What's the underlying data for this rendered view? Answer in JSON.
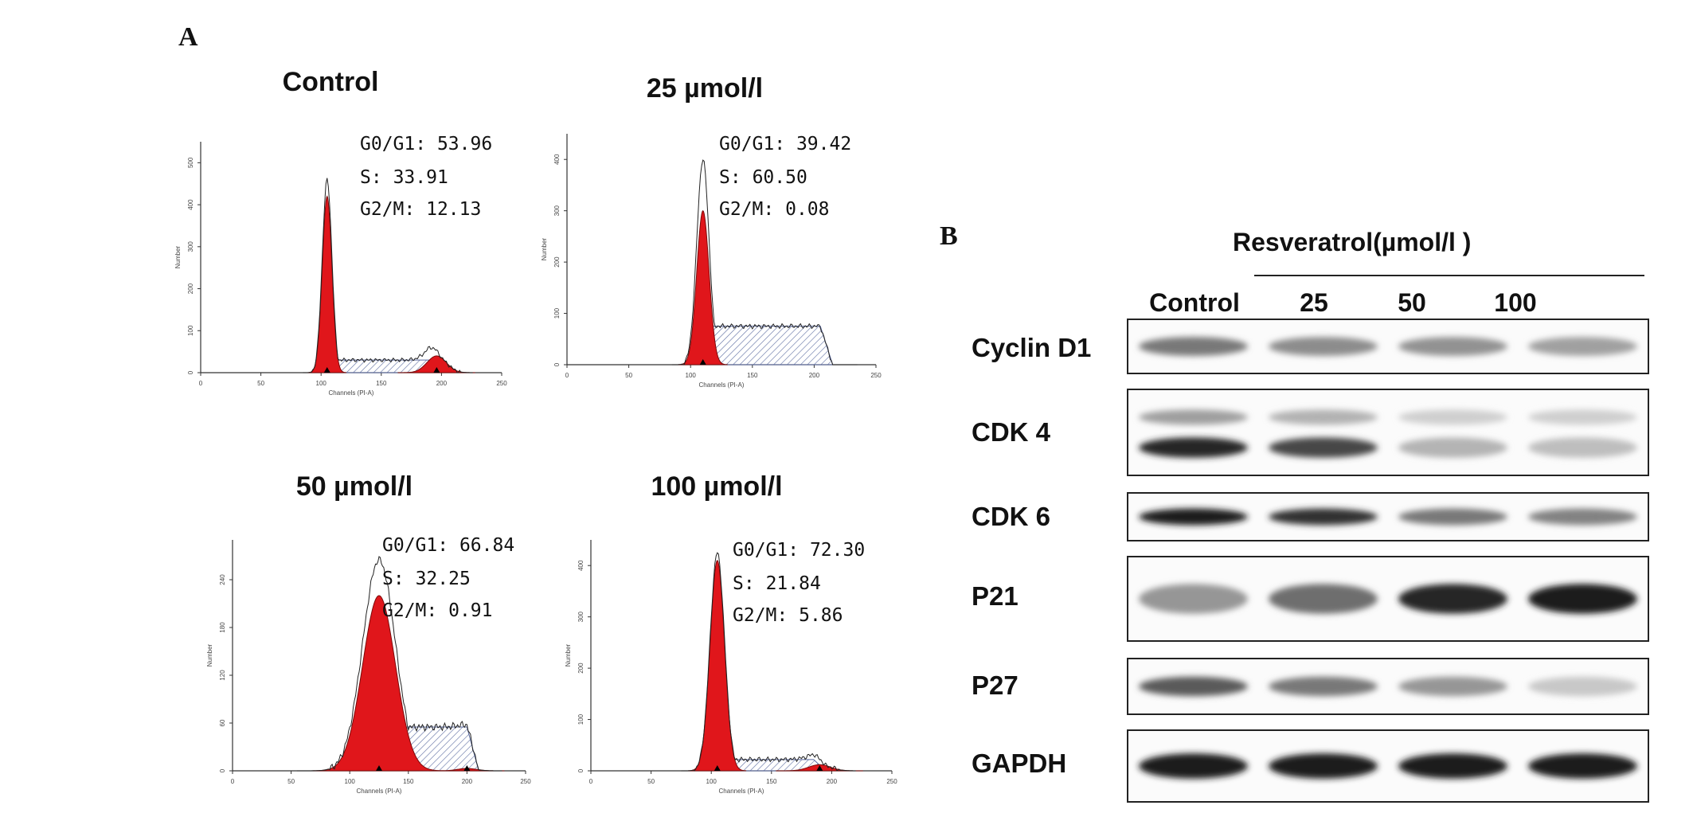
{
  "panel_a": {
    "label": "A",
    "histograms": [
      {
        "title": "Control",
        "stats": [
          {
            "phase": "G0/G1",
            "value": "53.96"
          },
          {
            "phase": "S",
            "value": "33.91"
          },
          {
            "phase": "G2/M",
            "value": "12.13"
          }
        ],
        "xlabel": "Channels (PI-A)",
        "ylabel": "Number",
        "xticks": [
          "0",
          "50",
          "100",
          "150",
          "200",
          "250"
        ],
        "yticks": [
          "0",
          "100",
          "200",
          "300",
          "400",
          "500"
        ],
        "ymax": 550,
        "g1_peak": {
          "center": 105,
          "width": 4,
          "height": 420
        },
        "g2_peak": {
          "center": 196,
          "width": 8,
          "height": 40
        },
        "s_level": 30,
        "s_range": [
          112,
          190
        ],
        "envelope_peak_height": 460
      },
      {
        "title": "25 µmol/l",
        "stats": [
          {
            "phase": "G0/G1",
            "value": "39.42"
          },
          {
            "phase": "S",
            "value": "60.50"
          },
          {
            "phase": "G2/M",
            "value": "0.08"
          }
        ],
        "xlabel": "Channels (PI-A)",
        "ylabel": "Number",
        "xticks": [
          "0",
          "50",
          "100",
          "150",
          "200",
          "250"
        ],
        "yticks": [
          "0",
          "100",
          "200",
          "300",
          "400"
        ],
        "ymax": 450,
        "g1_peak": {
          "center": 110,
          "width": 5,
          "height": 300
        },
        "g2_peak": {
          "center": 200,
          "width": 8,
          "height": 0
        },
        "s_level": 75,
        "s_range": [
          115,
          205
        ],
        "envelope_peak_height": 400
      },
      {
        "title": "50 µmol/l",
        "stats": [
          {
            "phase": "G0/G1",
            "value": "66.84"
          },
          {
            "phase": "S",
            "value": "32.25"
          },
          {
            "phase": "G2/M",
            "value": "0.91"
          }
        ],
        "xlabel": "Channels (PI-A)",
        "ylabel": "Number",
        "xticks": [
          "0",
          "50",
          "100",
          "150",
          "200",
          "250"
        ],
        "yticks": [
          "0",
          "60",
          "120",
          "180",
          "240"
        ],
        "ymax": 290,
        "g1_peak": {
          "center": 125,
          "width": 14,
          "height": 220
        },
        "g2_peak": {
          "center": 200,
          "width": 8,
          "height": 3
        },
        "s_level": 55,
        "s_range": [
          135,
          200
        ],
        "envelope_peak_height": 265
      },
      {
        "title": "100 µmol/l",
        "stats": [
          {
            "phase": "G0/G1",
            "value": "72.30"
          },
          {
            "phase": "S",
            "value": "21.84"
          },
          {
            "phase": "G2/M",
            "value": "5.86"
          }
        ],
        "xlabel": "Channels (PI-A)",
        "ylabel": "Number",
        "xticks": [
          "0",
          "50",
          "100",
          "150",
          "200",
          "250"
        ],
        "yticks": [
          "0",
          "100",
          "200",
          "300",
          "400"
        ],
        "ymax": 450,
        "g1_peak": {
          "center": 105,
          "width": 6,
          "height": 410
        },
        "g2_peak": {
          "center": 190,
          "width": 9,
          "height": 12
        },
        "s_level": 22,
        "s_range": [
          113,
          185
        ],
        "envelope_peak_height": 425
      }
    ]
  },
  "panel_b": {
    "label": "B",
    "treatment_header": "Resveratrol(µmol/l )",
    "lanes": [
      "Control",
      "25",
      "50",
      "100"
    ],
    "blots": [
      {
        "protein": "Cyclin D1",
        "intensities": [
          0.55,
          0.45,
          0.42,
          0.35
        ]
      },
      {
        "protein": "CDK 4",
        "intensities": [
          0.95,
          0.8,
          0.25,
          0.2
        ],
        "upper_band_intensities": [
          0.4,
          0.3,
          0.15,
          0.15
        ]
      },
      {
        "protein": "CDK 6",
        "intensities": [
          1.0,
          0.9,
          0.55,
          0.5
        ]
      },
      {
        "protein": "P21",
        "intensities": [
          0.4,
          0.6,
          0.95,
          1.0
        ]
      },
      {
        "protein": "P27",
        "intensities": [
          0.7,
          0.55,
          0.4,
          0.15
        ]
      },
      {
        "protein": "GAPDH",
        "intensities": [
          1.0,
          1.0,
          1.0,
          1.0
        ]
      }
    ]
  }
}
